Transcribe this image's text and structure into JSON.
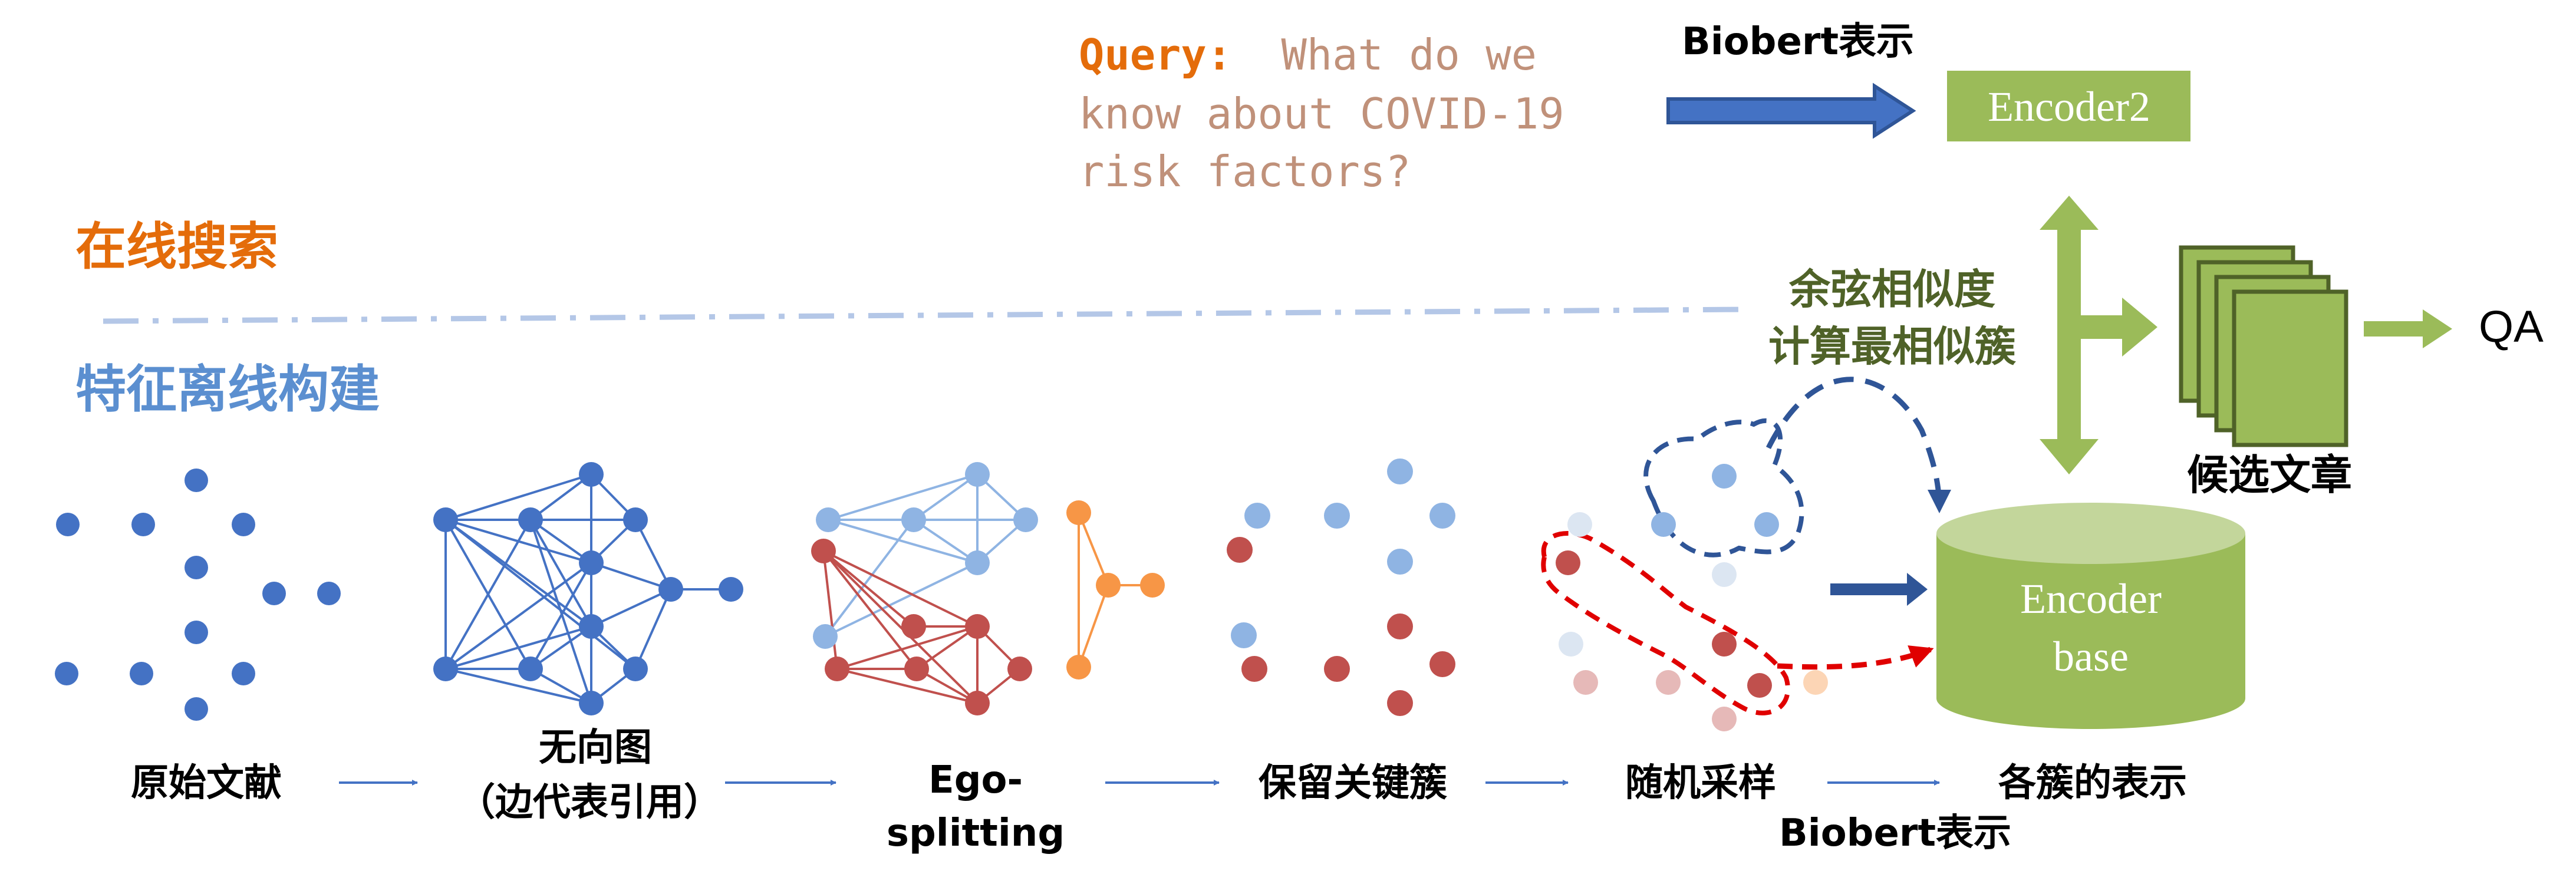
{
  "query": {
    "prefix": "Query:",
    "lines": [
      "What do we",
      "know about COVID-19",
      "risk factors?"
    ]
  },
  "labels": {
    "online_search": "在线搜索",
    "offline_build": "特征离线构建",
    "biobert_top": "Biobert表示",
    "encoder2": "Encoder2",
    "similarity_line1": "余弦相似度",
    "similarity_line2": "计算最相似簇",
    "candidate_articles": "候选文章",
    "qa": "QA",
    "encoder_base_line1": "Encoder",
    "encoder_base_line2": "base",
    "biobert_bottom": "Biobert表示"
  },
  "stages": [
    {
      "line1": "原始文献",
      "line2": ""
    },
    {
      "line1": "无向图",
      "line2": "（边代表引用）"
    },
    {
      "line1": "Ego-",
      "line2": "splitting"
    },
    {
      "line1": "保留关键簇",
      "line2": ""
    },
    {
      "line1": "随机采样",
      "line2": ""
    },
    {
      "line1": "各簇的表示",
      "line2": ""
    }
  ],
  "colors": {
    "online_orange": "#E46C0A",
    "offline_blue": "#5B8FD0",
    "node_blue": "#4472C4",
    "node_light_blue": "#8FB4E3",
    "node_red": "#C0504D",
    "node_orange": "#F79646",
    "encoder_green": "#9BBB59",
    "text_green": "#4F6228",
    "arrow_dark_blue": "#2F5597",
    "query_text": "#C0917A",
    "red_dash": "#E00000"
  }
}
